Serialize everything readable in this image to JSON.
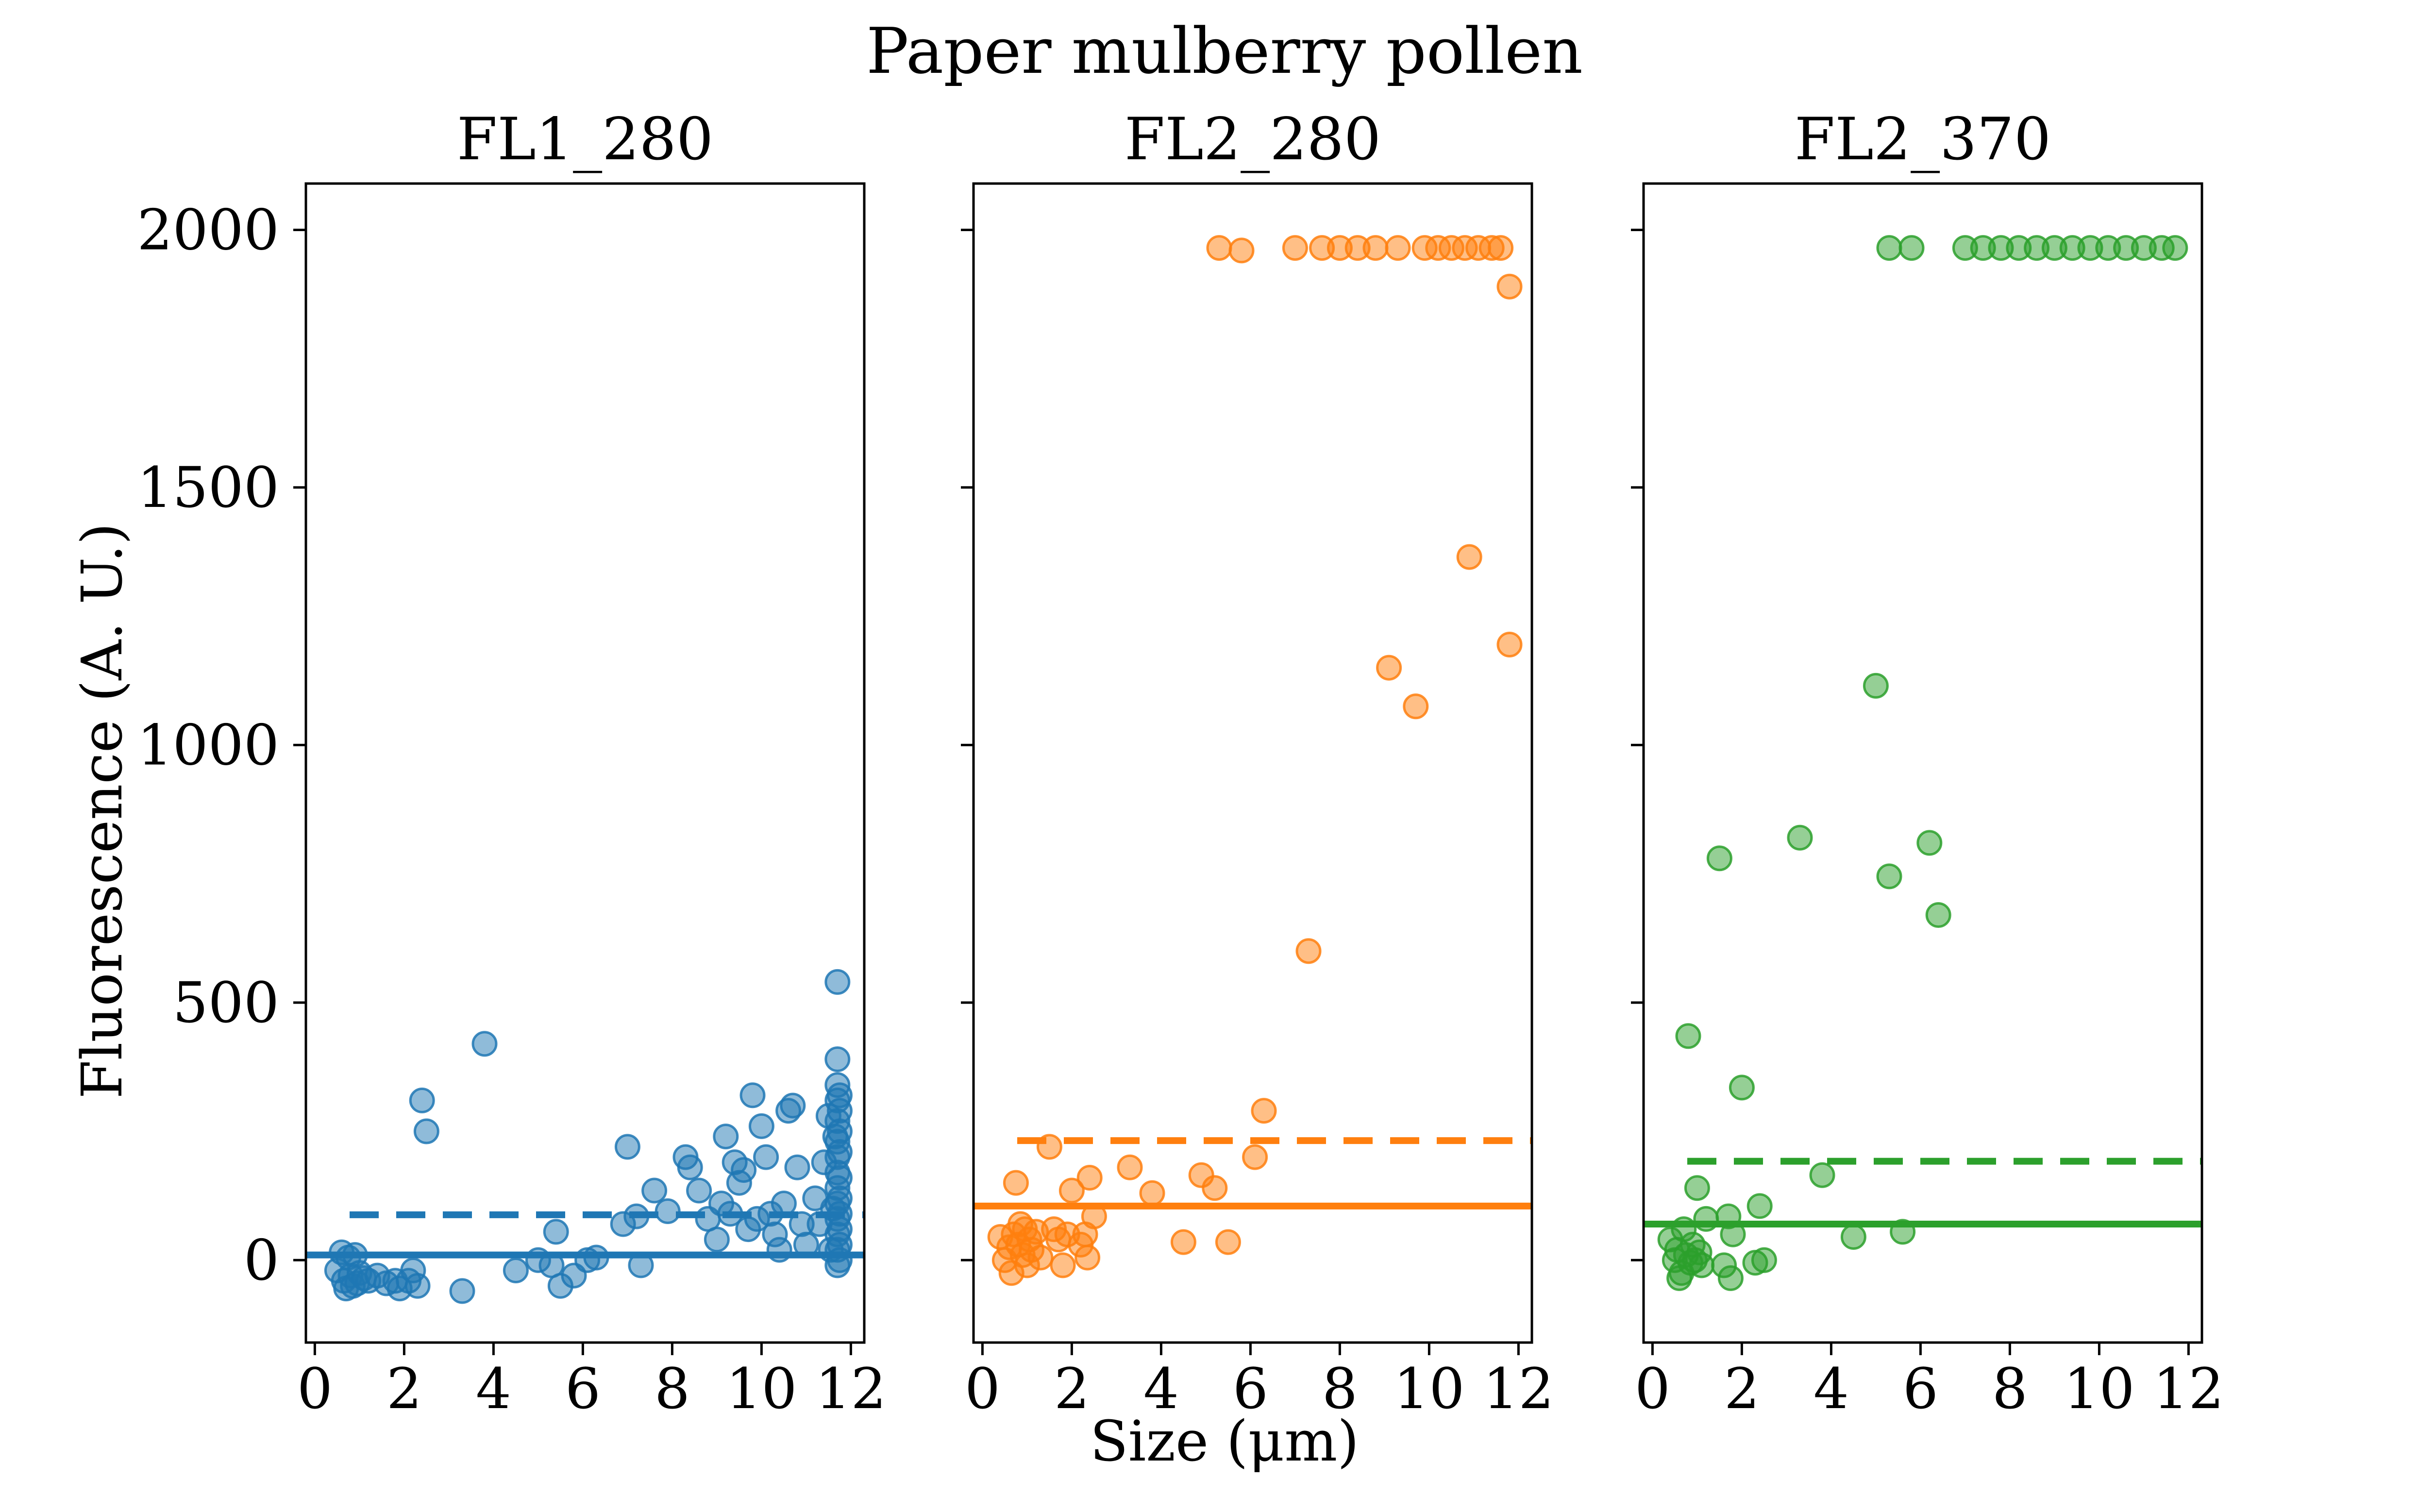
{
  "figure": {
    "suptitle": "Paper mulberry pollen",
    "xlabel": "Size (μm)",
    "ylabel": "Fluorescence (A. U.)"
  },
  "chart_data": [
    {
      "type": "scatter",
      "title": "FL1_280",
      "color": "#1f77b4",
      "xlim": [
        -0.2,
        12.3
      ],
      "ylim": [
        -160,
        2090
      ],
      "xticks": [
        0,
        2,
        4,
        6,
        8,
        10,
        12
      ],
      "yticks": [
        0,
        500,
        1000,
        1500,
        2000
      ],
      "threshold_solid": 10,
      "threshold_dashed": 88,
      "points": [
        [
          0.5,
          -20
        ],
        [
          0.6,
          15
        ],
        [
          0.65,
          -40
        ],
        [
          0.7,
          -55
        ],
        [
          0.75,
          5
        ],
        [
          0.8,
          -30
        ],
        [
          0.85,
          -50
        ],
        [
          0.9,
          10
        ],
        [
          0.95,
          -45
        ],
        [
          1.0,
          -25
        ],
        [
          1.1,
          -35
        ],
        [
          1.2,
          -40
        ],
        [
          1.4,
          -30
        ],
        [
          1.6,
          -45
        ],
        [
          1.8,
          -40
        ],
        [
          1.9,
          -55
        ],
        [
          2.1,
          -40
        ],
        [
          2.2,
          -20
        ],
        [
          2.3,
          -50
        ],
        [
          2.4,
          310
        ],
        [
          2.5,
          250
        ],
        [
          3.3,
          -60
        ],
        [
          3.8,
          420
        ],
        [
          4.5,
          -20
        ],
        [
          5.0,
          0
        ],
        [
          5.3,
          -10
        ],
        [
          5.4,
          55
        ],
        [
          5.5,
          -50
        ],
        [
          5.8,
          -30
        ],
        [
          6.1,
          0
        ],
        [
          6.3,
          5
        ],
        [
          6.9,
          70
        ],
        [
          7.0,
          220
        ],
        [
          7.2,
          85
        ],
        [
          7.3,
          -10
        ],
        [
          7.6,
          135
        ],
        [
          7.9,
          95
        ],
        [
          8.3,
          200
        ],
        [
          8.4,
          180
        ],
        [
          8.6,
          135
        ],
        [
          8.8,
          80
        ],
        [
          9.0,
          40
        ],
        [
          9.1,
          110
        ],
        [
          9.2,
          240
        ],
        [
          9.3,
          90
        ],
        [
          9.4,
          190
        ],
        [
          9.5,
          150
        ],
        [
          9.6,
          175
        ],
        [
          9.7,
          60
        ],
        [
          9.8,
          320
        ],
        [
          9.9,
          80
        ],
        [
          10.0,
          260
        ],
        [
          10.1,
          200
        ],
        [
          10.2,
          90
        ],
        [
          10.3,
          50
        ],
        [
          10.4,
          20
        ],
        [
          10.5,
          110
        ],
        [
          10.6,
          290
        ],
        [
          10.7,
          300
        ],
        [
          10.8,
          180
        ],
        [
          10.9,
          70
        ],
        [
          11.0,
          30
        ],
        [
          11.2,
          120
        ],
        [
          11.3,
          70
        ],
        [
          11.4,
          190
        ],
        [
          11.5,
          280
        ],
        [
          11.55,
          20
        ],
        [
          11.6,
          100
        ],
        [
          11.65,
          240
        ],
        [
          11.7,
          540
        ],
        [
          11.7,
          390
        ],
        [
          11.7,
          340
        ],
        [
          11.7,
          310
        ],
        [
          11.7,
          270
        ],
        [
          11.7,
          230
        ],
        [
          11.7,
          200
        ],
        [
          11.7,
          170
        ],
        [
          11.7,
          140
        ],
        [
          11.7,
          110
        ],
        [
          11.7,
          80
        ],
        [
          11.7,
          50
        ],
        [
          11.7,
          20
        ],
        [
          11.7,
          -10
        ],
        [
          11.75,
          320
        ],
        [
          11.75,
          290
        ],
        [
          11.75,
          250
        ],
        [
          11.75,
          210
        ],
        [
          11.75,
          160
        ],
        [
          11.75,
          120
        ],
        [
          11.75,
          90
        ],
        [
          11.75,
          60
        ],
        [
          11.75,
          30
        ],
        [
          11.75,
          0
        ]
      ]
    },
    {
      "type": "scatter",
      "title": "FL2_280",
      "color": "#ff7f0e",
      "xlim": [
        -0.2,
        12.3
      ],
      "ylim": [
        -160,
        2090
      ],
      "xticks": [
        0,
        2,
        4,
        6,
        8,
        10,
        12
      ],
      "yticks": [
        0,
        500,
        1000,
        1500,
        2000
      ],
      "threshold_solid": 105,
      "threshold_dashed": 232,
      "points": [
        [
          0.4,
          45
        ],
        [
          0.5,
          0
        ],
        [
          0.6,
          25
        ],
        [
          0.65,
          -25
        ],
        [
          0.7,
          50
        ],
        [
          0.75,
          150
        ],
        [
          0.8,
          30
        ],
        [
          0.85,
          70
        ],
        [
          0.9,
          10
        ],
        [
          0.95,
          60
        ],
        [
          1.0,
          -10
        ],
        [
          1.05,
          40
        ],
        [
          1.1,
          20
        ],
        [
          1.2,
          55
        ],
        [
          1.3,
          5
        ],
        [
          1.5,
          220
        ],
        [
          1.6,
          60
        ],
        [
          1.7,
          40
        ],
        [
          1.8,
          -10
        ],
        [
          1.9,
          50
        ],
        [
          2.0,
          135
        ],
        [
          2.2,
          30
        ],
        [
          2.3,
          50
        ],
        [
          2.35,
          5
        ],
        [
          2.4,
          160
        ],
        [
          2.5,
          85
        ],
        [
          3.3,
          180
        ],
        [
          3.8,
          130
        ],
        [
          4.5,
          35
        ],
        [
          4.9,
          165
        ],
        [
          5.2,
          140
        ],
        [
          5.3,
          1965
        ],
        [
          5.5,
          35
        ],
        [
          5.8,
          1960
        ],
        [
          6.1,
          200
        ],
        [
          6.3,
          290
        ],
        [
          7.0,
          1965
        ],
        [
          7.3,
          600
        ],
        [
          7.6,
          1965
        ],
        [
          8.0,
          1965
        ],
        [
          8.4,
          1965
        ],
        [
          8.8,
          1965
        ],
        [
          9.1,
          1150
        ],
        [
          9.3,
          1965
        ],
        [
          9.7,
          1075
        ],
        [
          9.9,
          1965
        ],
        [
          10.2,
          1965
        ],
        [
          10.5,
          1965
        ],
        [
          10.8,
          1965
        ],
        [
          10.9,
          1365
        ],
        [
          11.1,
          1965
        ],
        [
          11.4,
          1965
        ],
        [
          11.6,
          1965
        ],
        [
          11.8,
          1890
        ],
        [
          11.8,
          1195
        ]
      ]
    },
    {
      "type": "scatter",
      "title": "FL2_370",
      "color": "#2ca02c",
      "xlim": [
        -0.2,
        12.3
      ],
      "ylim": [
        -160,
        2090
      ],
      "xticks": [
        0,
        2,
        4,
        6,
        8,
        10,
        12
      ],
      "yticks": [
        0,
        500,
        1000,
        1500,
        2000
      ],
      "threshold_solid": 70,
      "threshold_dashed": 192,
      "points": [
        [
          0.4,
          40
        ],
        [
          0.5,
          0
        ],
        [
          0.55,
          20
        ],
        [
          0.6,
          -35
        ],
        [
          0.65,
          -25
        ],
        [
          0.7,
          60
        ],
        [
          0.75,
          10
        ],
        [
          0.8,
          435
        ],
        [
          0.85,
          -5
        ],
        [
          0.9,
          30
        ],
        [
          0.95,
          0
        ],
        [
          1.0,
          140
        ],
        [
          1.05,
          15
        ],
        [
          1.1,
          -10
        ],
        [
          1.2,
          80
        ],
        [
          1.5,
          780
        ],
        [
          1.6,
          -10
        ],
        [
          1.7,
          85
        ],
        [
          1.75,
          -35
        ],
        [
          1.8,
          50
        ],
        [
          2.0,
          335
        ],
        [
          2.3,
          -5
        ],
        [
          2.4,
          105
        ],
        [
          2.5,
          0
        ],
        [
          3.3,
          820
        ],
        [
          3.8,
          165
        ],
        [
          4.5,
          45
        ],
        [
          5.0,
          1115
        ],
        [
          5.3,
          745
        ],
        [
          5.3,
          1965
        ],
        [
          5.6,
          55
        ],
        [
          5.8,
          1965
        ],
        [
          6.2,
          810
        ],
        [
          6.4,
          670
        ],
        [
          7.0,
          1965
        ],
        [
          7.4,
          1965
        ],
        [
          7.8,
          1965
        ],
        [
          8.2,
          1965
        ],
        [
          8.6,
          1965
        ],
        [
          9.0,
          1965
        ],
        [
          9.4,
          1965
        ],
        [
          9.8,
          1965
        ],
        [
          10.2,
          1965
        ],
        [
          10.6,
          1965
        ],
        [
          11.0,
          1965
        ],
        [
          11.4,
          1965
        ],
        [
          11.7,
          1965
        ]
      ]
    }
  ]
}
